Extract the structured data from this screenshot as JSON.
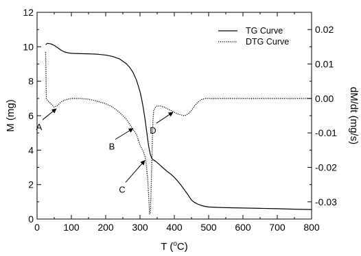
{
  "chart_data": {
    "type": "line",
    "xlabel": "T (°C)",
    "xlabel_parts": {
      "pre": "T (",
      "sup": "o",
      "post": "C)"
    },
    "ylabel_left": "M (mg)",
    "ylabel_right": "dM/dt (mg/s)",
    "xlim": [
      0,
      800
    ],
    "ylim_left": [
      0,
      12
    ],
    "ylim_right": [
      -0.035,
      0.025
    ],
    "x_ticks": [
      "0",
      "100",
      "200",
      "300",
      "400",
      "500",
      "600",
      "700",
      "800"
    ],
    "y_left_ticks": [
      "0",
      "2",
      "4",
      "6",
      "8",
      "10",
      "12"
    ],
    "y_right_ticks": [
      "0.02",
      "0.01",
      "0.00",
      "-0.01",
      "-0.02",
      "-0.03"
    ],
    "y_right_tick_values": [
      0.02,
      0.01,
      0.0,
      -0.01,
      -0.02,
      -0.03
    ],
    "grid": false,
    "legend_position": "top-right",
    "series": [
      {
        "name": "TG Curve",
        "axis": "left",
        "style": "solid",
        "color": "#000000",
        "x": [
          25,
          30,
          40,
          50,
          60,
          70,
          80,
          90,
          100,
          125,
          150,
          175,
          200,
          220,
          240,
          260,
          270,
          280,
          290,
          300,
          305,
          310,
          315,
          320,
          325,
          330,
          335,
          340,
          345,
          350,
          360,
          370,
          380,
          390,
          400,
          410,
          420,
          430,
          440,
          450,
          460,
          470,
          480,
          490,
          500,
          520,
          550,
          600,
          650,
          700,
          750,
          800
        ],
        "y": [
          10.12,
          10.2,
          10.17,
          10.08,
          9.95,
          9.8,
          9.7,
          9.65,
          9.62,
          9.6,
          9.59,
          9.57,
          9.52,
          9.44,
          9.3,
          9.02,
          8.8,
          8.5,
          8.05,
          7.4,
          6.95,
          6.4,
          5.75,
          5.0,
          4.25,
          3.75,
          3.5,
          3.42,
          3.36,
          3.28,
          3.1,
          2.92,
          2.75,
          2.6,
          2.42,
          2.2,
          1.95,
          1.68,
          1.4,
          1.1,
          0.95,
          0.85,
          0.78,
          0.73,
          0.7,
          0.68,
          0.66,
          0.64,
          0.62,
          0.6,
          0.57,
          0.55
        ]
      },
      {
        "name": "DTG Curve",
        "axis": "right",
        "style": "dotted",
        "color": "#000000",
        "x": [
          25,
          25.5,
          27,
          30,
          40,
          50,
          60,
          70,
          80,
          90,
          100,
          125,
          150,
          175,
          200,
          220,
          240,
          260,
          270,
          280,
          290,
          300,
          305,
          310,
          315,
          318,
          320,
          322,
          324,
          326,
          328,
          330,
          332,
          334,
          336,
          338,
          340,
          345,
          350,
          360,
          370,
          380,
          390,
          400,
          410,
          420,
          430,
          440,
          450,
          460,
          470,
          480,
          490,
          500,
          520,
          550,
          600,
          650,
          700,
          750,
          800
        ],
        "y": [
          0.0135,
          0.01,
          0.0,
          -0.0005,
          -0.0015,
          -0.0025,
          -0.002,
          -0.001,
          -0.0005,
          -0.0002,
          0.0,
          0.0,
          -0.0002,
          -0.0008,
          -0.0015,
          -0.0025,
          -0.004,
          -0.006,
          -0.0075,
          -0.009,
          -0.0105,
          -0.0135,
          -0.0145,
          -0.0155,
          -0.017,
          -0.019,
          -0.021,
          -0.023,
          -0.026,
          -0.03,
          -0.0335,
          -0.033,
          -0.028,
          -0.02,
          -0.012,
          -0.006,
          -0.0035,
          -0.0025,
          -0.0022,
          -0.0022,
          -0.0025,
          -0.003,
          -0.0035,
          -0.004,
          -0.0045,
          -0.0048,
          -0.005,
          -0.0045,
          -0.0035,
          -0.002,
          -0.001,
          -0.0003,
          0.0,
          0.0,
          0.0,
          0.0,
          0.0,
          0.0,
          0.0,
          0.0,
          0.0
        ]
      }
    ],
    "annotations": [
      {
        "label": "A",
        "arrow_to": {
          "x": 58,
          "y_right": -0.0028
        }
      },
      {
        "label": "B",
        "arrow_to": {
          "x": 282,
          "y_right": -0.0085
        }
      },
      {
        "label": "C",
        "arrow_to": {
          "x": 316,
          "y_right": -0.0178
        }
      },
      {
        "label": "D",
        "arrow_to": {
          "x": 398,
          "y_right": -0.0038
        }
      }
    ]
  }
}
